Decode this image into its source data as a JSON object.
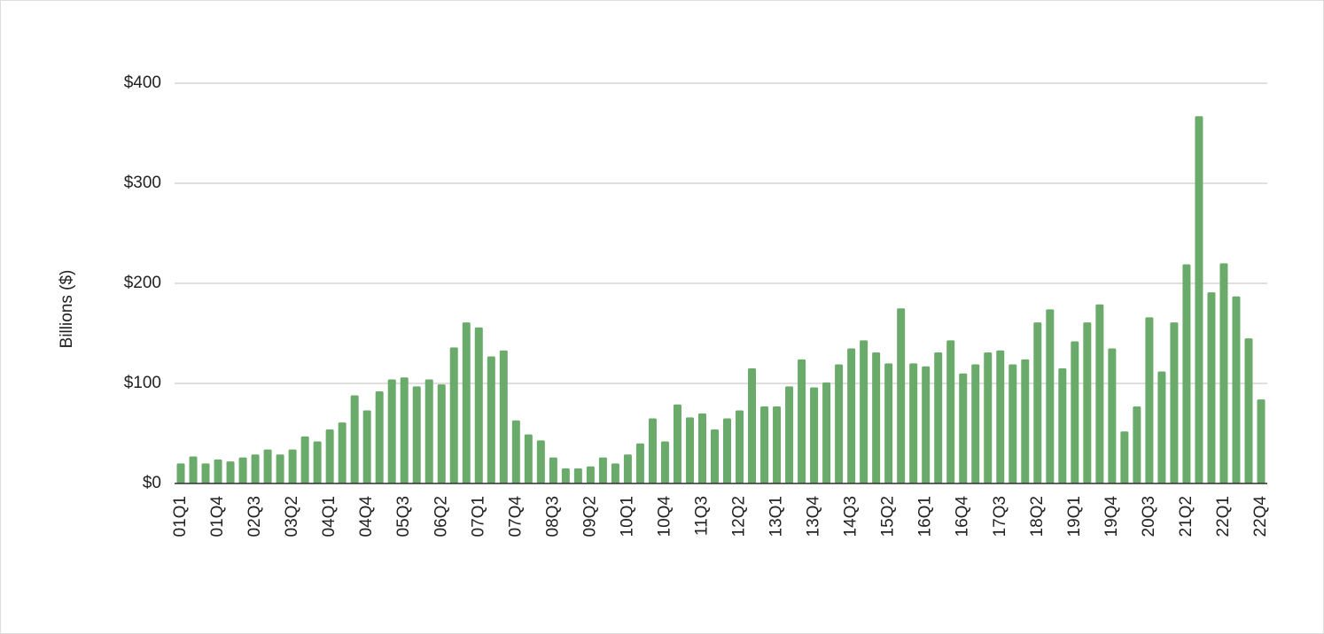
{
  "chart_data": {
    "type": "bar",
    "y_label": "Billions ($)",
    "color": "#6aaa6a",
    "grid": true,
    "categories": [
      "01Q1",
      null,
      null,
      "01Q4",
      null,
      null,
      "02Q3",
      null,
      null,
      "03Q2",
      null,
      null,
      "04Q1",
      null,
      null,
      "04Q4",
      null,
      null,
      "05Q3",
      null,
      null,
      "06Q2",
      null,
      null,
      "07Q1",
      null,
      null,
      "07Q4",
      null,
      null,
      "08Q3",
      null,
      null,
      "09Q2",
      null,
      null,
      "10Q1",
      null,
      null,
      "10Q4",
      null,
      null,
      "11Q3",
      null,
      null,
      "12Q2",
      null,
      null,
      "13Q1",
      null,
      null,
      "13Q4",
      null,
      null,
      "14Q3",
      null,
      null,
      "15Q2",
      null,
      null,
      "16Q1",
      null,
      null,
      "16Q4",
      null,
      null,
      "17Q3",
      null,
      null,
      "18Q2",
      null,
      null,
      "19Q1",
      null,
      null,
      "19Q4",
      null,
      null,
      "20Q3",
      null,
      null,
      "21Q2",
      null,
      null,
      "22Q1",
      null,
      null,
      "22Q4"
    ],
    "values": [
      20,
      27,
      20,
      24,
      22,
      26,
      29,
      34,
      29,
      34,
      47,
      42,
      54,
      61,
      88,
      73,
      92,
      104,
      106,
      97,
      104,
      99,
      136,
      161,
      156,
      127,
      133,
      63,
      49,
      43,
      26,
      15,
      15,
      17,
      26,
      20,
      29,
      40,
      65,
      42,
      79,
      66,
      70,
      54,
      65,
      73,
      115,
      77,
      77,
      97,
      124,
      96,
      101,
      119,
      135,
      143,
      131,
      120,
      175,
      120,
      117,
      131,
      143,
      110,
      119,
      131,
      133,
      119,
      124,
      161,
      174,
      115,
      142,
      161,
      179,
      135,
      52,
      77,
      166,
      112,
      161,
      219,
      367,
      191,
      220,
      187,
      145,
      84
    ],
    "ylim": [
      0,
      400
    ],
    "yticks": [
      {
        "value": 0,
        "label": "$0"
      },
      {
        "value": 100,
        "label": "$100"
      },
      {
        "value": 200,
        "label": "$200"
      },
      {
        "value": 300,
        "label": "$300"
      },
      {
        "value": 400,
        "label": "$400"
      }
    ]
  }
}
